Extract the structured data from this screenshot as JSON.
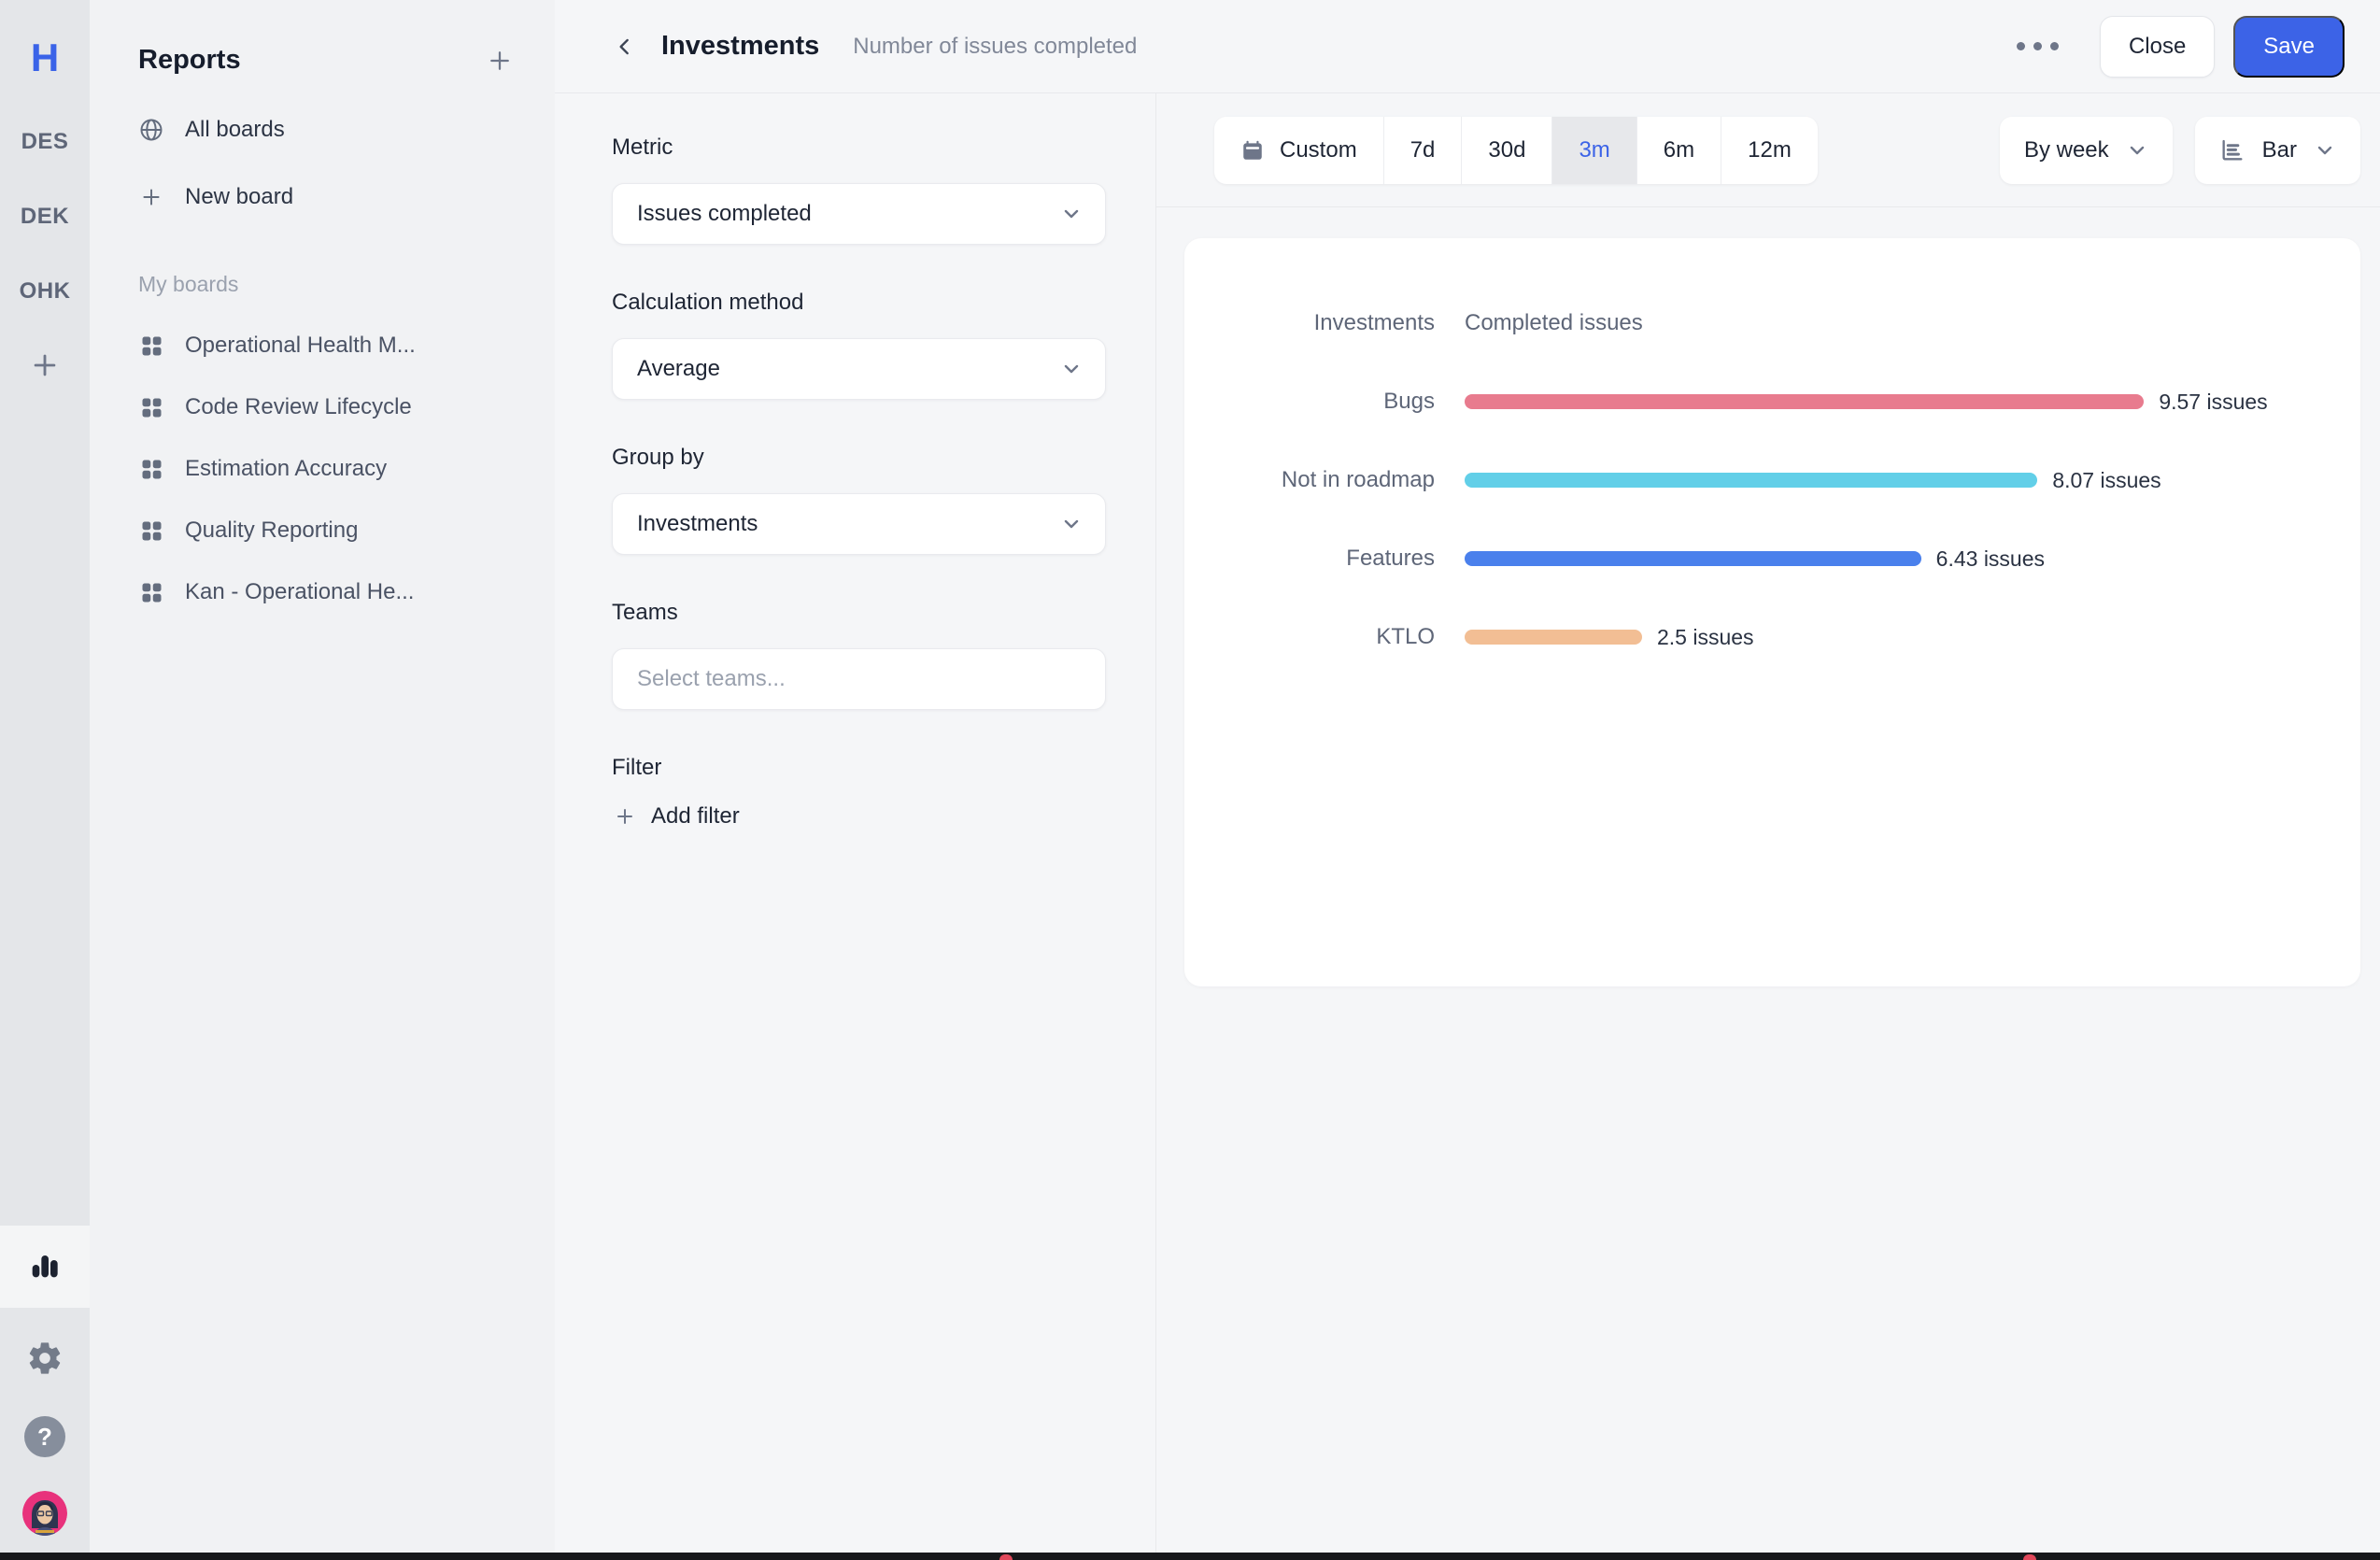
{
  "rail": {
    "logo": "H",
    "workspaces": [
      "DES",
      "DEK",
      "OHK"
    ]
  },
  "sidebar": {
    "title": "Reports",
    "all_boards_label": "All boards",
    "new_board_label": "New board",
    "section_label": "My boards",
    "boards": [
      "Operational Health M...",
      "Code Review Lifecycle",
      "Estimation Accuracy",
      "Quality Reporting",
      "Kan - Operational He..."
    ]
  },
  "header": {
    "title": "Investments",
    "subtitle": "Number of issues completed",
    "close_label": "Close",
    "save_label": "Save"
  },
  "form": {
    "metric_label": "Metric",
    "metric_value": "Issues completed",
    "calc_label": "Calculation method",
    "calc_value": "Average",
    "group_label": "Group by",
    "group_value": "Investments",
    "teams_label": "Teams",
    "teams_placeholder": "Select teams...",
    "filter_label": "Filter",
    "add_filter_label": "Add filter"
  },
  "controls": {
    "ranges": [
      "Custom",
      "7d",
      "30d",
      "3m",
      "6m",
      "12m"
    ],
    "selected_range": "3m",
    "interval_label": "By week",
    "chart_type_label": "Bar"
  },
  "chart_data": {
    "type": "bar",
    "orientation": "horizontal",
    "columns": [
      "Investments",
      "Completed issues"
    ],
    "categories": [
      "Bugs",
      "Not in roadmap",
      "Features",
      "KTLO"
    ],
    "values": [
      9.57,
      8.07,
      6.43,
      2.5
    ],
    "value_labels": [
      "9.57 issues",
      "8.07 issues",
      "6.43 issues",
      "2.5 issues"
    ],
    "colors": [
      "#e87b8e",
      "#62cfe8",
      "#4a80ec",
      "#f2be94"
    ],
    "xlim": [
      0,
      10
    ],
    "grid": false,
    "legend": false
  },
  "theme": {
    "accent_blue": "#3c63e7",
    "rail_bg": "#e4e6e9",
    "sidebar_bg": "#f1f2f4",
    "main_bg": "#f5f6f8",
    "card_bg": "#ffffff"
  }
}
